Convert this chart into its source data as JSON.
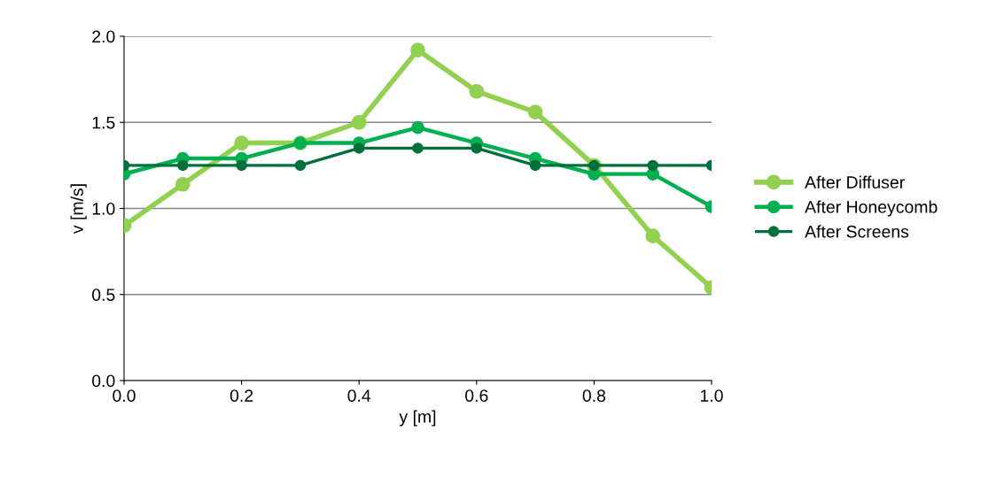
{
  "chart_data": {
    "type": "line",
    "xlabel": "y [m]",
    "ylabel": "v [m/s]",
    "x": [
      0.0,
      0.1,
      0.2,
      0.3,
      0.4,
      0.5,
      0.6,
      0.7,
      0.8,
      0.9,
      1.0
    ],
    "series": [
      {
        "name": "After Diffuser",
        "color": "#92d050",
        "values": [
          0.9,
          1.14,
          1.38,
          1.38,
          1.5,
          1.92,
          1.68,
          1.56,
          1.25,
          0.84,
          0.54
        ]
      },
      {
        "name": "After Honeycomb",
        "color": "#00b050",
        "values": [
          1.2,
          1.29,
          1.29,
          1.38,
          1.38,
          1.47,
          1.38,
          1.29,
          1.2,
          1.2,
          1.01
        ]
      },
      {
        "name": "After Screens",
        "color": "#00703c",
        "values": [
          1.25,
          1.25,
          1.25,
          1.25,
          1.35,
          1.35,
          1.35,
          1.25,
          1.25,
          1.25,
          1.25
        ]
      }
    ],
    "xlim": [
      0.0,
      1.0
    ],
    "xticks": [
      {
        "value": 0.0,
        "label": "0.0"
      },
      {
        "value": 0.2,
        "label": "0.2"
      },
      {
        "value": 0.4,
        "label": "0.4"
      },
      {
        "value": 0.6,
        "label": "0.6"
      },
      {
        "value": 0.8,
        "label": "0.8"
      },
      {
        "value": 1.0,
        "label": "1.0"
      }
    ],
    "ylim": [
      0.0,
      2.0
    ],
    "yticks": [
      {
        "value": 0.0,
        "label": "0.0"
      },
      {
        "value": 0.5,
        "label": "0.5"
      },
      {
        "value": 1.0,
        "label": "1.0"
      },
      {
        "value": 1.5,
        "label": "1.5"
      },
      {
        "value": 2.0,
        "label": "2.0"
      }
    ],
    "grid": "y",
    "legend": "right",
    "marker": "circle",
    "line_style": "solid"
  }
}
